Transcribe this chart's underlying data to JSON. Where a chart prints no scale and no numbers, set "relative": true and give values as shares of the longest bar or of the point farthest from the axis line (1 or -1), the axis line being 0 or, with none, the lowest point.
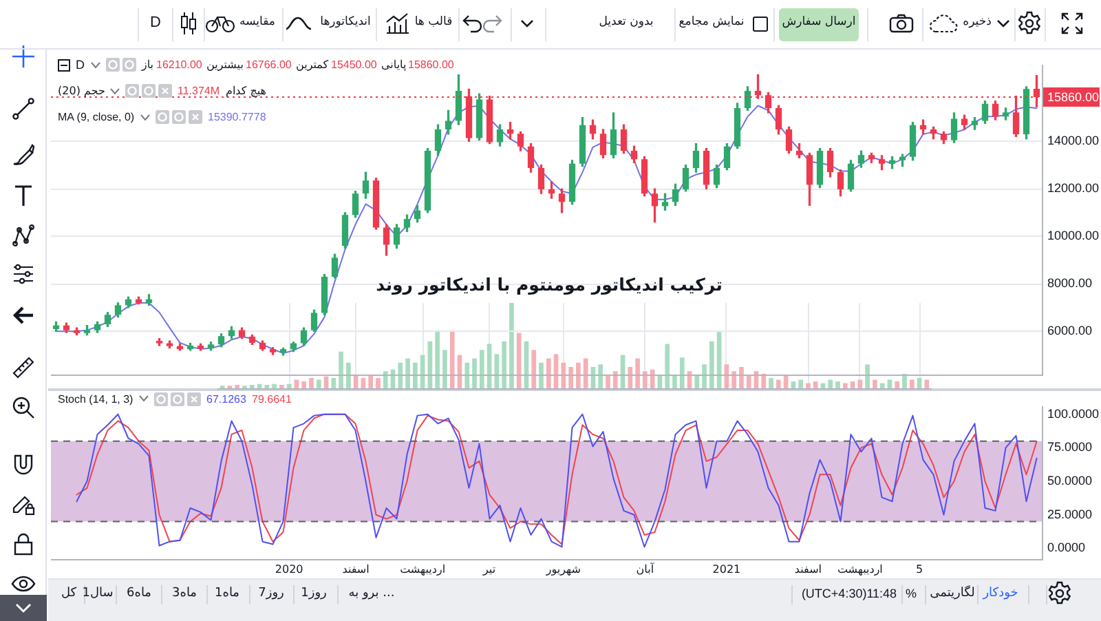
{
  "chart_data": [
    {
      "type": "other",
      "annotations": [
        "D",
        "مقایسه",
        "اندیکاتورها",
        "قالب ها",
        "بدون تعدیل",
        "نمایش مجامع",
        "ارسال سفارش",
        "ذخیره"
      ]
    },
    {
      "type": "candlestick",
      "title": "ترکیب اندیکاتور مومنتوم با اندیکاتور روند",
      "categories": [
        null,
        null,
        null,
        null,
        null,
        null,
        null,
        null,
        null,
        null,
        null,
        null,
        null,
        null,
        null,
        null,
        null,
        null,
        null,
        null,
        null,
        null,
        null,
        null,
        null,
        null,
        null,
        null,
        null,
        null,
        null,
        null,
        null,
        null,
        null,
        null,
        null,
        null,
        null,
        null,
        null,
        null,
        null,
        null,
        null,
        null,
        null,
        null,
        null,
        null,
        null,
        null,
        null,
        null,
        null,
        null,
        null,
        null,
        null,
        null,
        null,
        null,
        null,
        null,
        null,
        null,
        null,
        null,
        null,
        null,
        null,
        null,
        null,
        null,
        null,
        null,
        null,
        null,
        null,
        null,
        null,
        null,
        null,
        null,
        null,
        null,
        null,
        null,
        null,
        null,
        null,
        null,
        null,
        null,
        null,
        null
      ],
      "ohlc": [
        [
          6100,
          6400,
          6000,
          6250
        ],
        [
          6250,
          6350,
          5950,
          6050
        ],
        [
          6050,
          6150,
          5850,
          5930
        ],
        [
          5930,
          6250,
          5850,
          6050
        ],
        [
          6050,
          6400,
          5950,
          6300
        ],
        [
          6300,
          6800,
          6200,
          6700
        ],
        [
          6700,
          7200,
          6600,
          7100
        ],
        [
          7100,
          7450,
          7000,
          7350
        ],
        [
          7350,
          7450,
          7150,
          7200
        ],
        [
          7200,
          7550,
          7100,
          7350
        ],
        [
          5600,
          5700,
          5400,
          5500
        ],
        [
          5500,
          5600,
          5300,
          5380
        ],
        [
          5380,
          5480,
          5200,
          5250
        ],
        [
          5250,
          5500,
          5200,
          5400
        ],
        [
          5400,
          5480,
          5200,
          5280
        ],
        [
          5280,
          5550,
          5200,
          5450
        ],
        [
          5450,
          5900,
          5350,
          5800
        ],
        [
          5800,
          6200,
          5700,
          6050
        ],
        [
          6050,
          6150,
          5700,
          5780
        ],
        [
          5780,
          5850,
          5450,
          5520
        ],
        [
          5520,
          5600,
          5200,
          5250
        ],
        [
          5250,
          5320,
          5020,
          5120
        ],
        [
          5120,
          5300,
          5000,
          5250
        ],
        [
          5250,
          5550,
          5150,
          5500
        ],
        [
          5500,
          6150,
          5400,
          6050
        ],
        [
          6050,
          6900,
          6000,
          6780
        ],
        [
          6780,
          8400,
          6700,
          8300
        ],
        [
          8300,
          9250,
          8250,
          9100
        ],
        [
          9600,
          11000,
          9500,
          10900
        ],
        [
          10900,
          11900,
          10800,
          11800
        ],
        [
          11800,
          12700,
          11600,
          12350
        ],
        [
          12350,
          12450,
          10300,
          10370
        ],
        [
          10370,
          10500,
          9200,
          9650
        ],
        [
          9650,
          10500,
          9500,
          10370
        ],
        [
          10370,
          10900,
          10200,
          10730
        ],
        [
          10730,
          11300,
          10600,
          11090
        ],
        [
          11090,
          13700,
          11000,
          13600
        ],
        [
          13600,
          14700,
          13400,
          14500
        ],
        [
          14500,
          15300,
          14300,
          14860
        ],
        [
          14860,
          16800,
          14700,
          16120
        ],
        [
          15900,
          16200,
          14000,
          14140
        ],
        [
          14140,
          16000,
          14050,
          15760
        ],
        [
          15760,
          15900,
          13900,
          13960
        ],
        [
          13960,
          14700,
          13800,
          14500
        ],
        [
          14500,
          14800,
          14100,
          14320
        ],
        [
          14320,
          14400,
          13600,
          13780
        ],
        [
          13780,
          13900,
          12700,
          12880
        ],
        [
          12880,
          13000,
          11800,
          11980
        ],
        [
          11980,
          12300,
          11600,
          11800
        ],
        [
          11800,
          12000,
          11000,
          11450
        ],
        [
          11450,
          13200,
          11350,
          13060
        ],
        [
          13060,
          15000,
          12950,
          14680
        ],
        [
          14680,
          14900,
          14100,
          14320
        ],
        [
          14320,
          14500,
          13300,
          13420
        ],
        [
          13420,
          15200,
          13300,
          14500
        ],
        [
          14500,
          14700,
          13500,
          13600
        ],
        [
          13600,
          13800,
          13100,
          13250
        ],
        [
          13250,
          13350,
          11700,
          11800
        ],
        [
          11800,
          12000,
          10600,
          11270
        ],
        [
          11270,
          11800,
          11100,
          11450
        ],
        [
          11450,
          12200,
          11300,
          11980
        ],
        [
          11980,
          13000,
          11900,
          12880
        ],
        [
          12880,
          13900,
          12700,
          13600
        ],
        [
          13600,
          13700,
          12000,
          12170
        ],
        [
          12170,
          13000,
          12050,
          12880
        ],
        [
          12880,
          13900,
          12800,
          13780
        ],
        [
          13780,
          15600,
          13700,
          15400
        ],
        [
          15400,
          16300,
          15300,
          16120
        ],
        [
          16120,
          16800,
          15800,
          15940
        ],
        [
          15940,
          16050,
          15200,
          15400
        ],
        [
          15400,
          15500,
          14300,
          14500
        ],
        [
          14500,
          14600,
          13500,
          13600
        ],
        [
          13600,
          13900,
          13300,
          13420
        ],
        [
          13420,
          13500,
          11300,
          12170
        ],
        [
          12170,
          13700,
          12050,
          13600
        ],
        [
          13600,
          13700,
          12500,
          12700
        ],
        [
          12700,
          12800,
          11700,
          11980
        ],
        [
          11980,
          13200,
          11900,
          13060
        ],
        [
          13060,
          13600,
          12900,
          13420
        ],
        [
          13420,
          13500,
          13100,
          13250
        ],
        [
          13250,
          13400,
          12800,
          13060
        ],
        [
          13060,
          13350,
          12850,
          13200
        ],
        [
          13200,
          13450,
          12950,
          13350
        ],
        [
          13350,
          14800,
          13200,
          14680
        ],
        [
          14680,
          14900,
          14300,
          14500
        ],
        [
          14500,
          14600,
          14100,
          14320
        ],
        [
          14320,
          14400,
          13900,
          14050
        ],
        [
          14050,
          15200,
          13950,
          14950
        ],
        [
          14950,
          15100,
          14500,
          14680
        ],
        [
          14680,
          15000,
          14500,
          14860
        ],
        [
          14860,
          15700,
          14750,
          15580
        ],
        [
          15580,
          15700,
          14900,
          15040
        ],
        [
          15040,
          15400,
          14900,
          15220
        ],
        [
          15220,
          15900,
          14200,
          14300
        ],
        [
          14300,
          16300,
          14100,
          16200
        ],
        [
          16210,
          16766,
          15450,
          15860
        ]
      ],
      "colors": [
        "#2fa86b",
        "#ee3a4e",
        "#ee3a4e",
        "#2fa86b",
        "#2fa86b",
        "#2fa86b",
        "#2fa86b",
        "#2fa86b",
        "#ee3a4e",
        "#2fa86b",
        "#ee3a4e",
        "#ee3a4e",
        "#ee3a4e",
        "#2fa86b",
        "#ee3a4e",
        "#2fa86b",
        "#2fa86b",
        "#2fa86b",
        "#ee3a4e",
        "#ee3a4e",
        "#ee3a4e",
        "#ee3a4e",
        "#2fa86b",
        "#2fa86b",
        "#2fa86b",
        "#2fa86b",
        "#2fa86b",
        "#2fa86b",
        "#2fa86b",
        "#2fa86b",
        "#2fa86b",
        "#ee3a4e",
        "#ee3a4e",
        "#2fa86b",
        "#2fa86b",
        "#2fa86b",
        "#2fa86b",
        "#2fa86b",
        "#2fa86b",
        "#2fa86b",
        "#ee3a4e",
        "#2fa86b",
        "#ee3a4e",
        "#2fa86b",
        "#ee3a4e",
        "#ee3a4e",
        "#ee3a4e",
        "#ee3a4e",
        "#ee3a4e",
        "#ee3a4e",
        "#2fa86b",
        "#2fa86b",
        "#ee3a4e",
        "#ee3a4e",
        "#2fa86b",
        "#ee3a4e",
        "#ee3a4e",
        "#ee3a4e",
        "#ee3a4e",
        "#2fa86b",
        "#2fa86b",
        "#2fa86b",
        "#2fa86b",
        "#ee3a4e",
        "#2fa86b",
        "#2fa86b",
        "#2fa86b",
        "#2fa86b",
        "#ee3a4e",
        "#ee3a4e",
        "#ee3a4e",
        "#ee3a4e",
        "#ee3a4e",
        "#ee3a4e",
        "#2fa86b",
        "#ee3a4e",
        "#ee3a4e",
        "#2fa86b",
        "#2fa86b",
        "#ee3a4e",
        "#ee3a4e",
        "#2fa86b",
        "#2fa86b",
        "#2fa86b",
        "#ee3a4e",
        "#ee3a4e",
        "#ee3a4e",
        "#2fa86b",
        "#ee3a4e",
        "#2fa86b",
        "#2fa86b",
        "#ee3a4e",
        "#2fa86b",
        "#ee3a4e",
        "#2fa86b",
        "#ee3a4e"
      ],
      "series": [
        {
          "type": "line",
          "color": "#7272e8",
          "values": [
            6000,
            6000,
            6000,
            6050,
            6200,
            6400,
            6750,
            7050,
            7200,
            7200,
            6800,
            6150,
            5520,
            5350,
            5260,
            5300,
            5400,
            5650,
            5780,
            5700,
            5450,
            5250,
            5080,
            5200,
            5400,
            5900,
            6600,
            8100,
            9450,
            10500,
            11360,
            11090,
            10500,
            10000,
            10450,
            11350,
            12400,
            13400,
            14550,
            15200,
            15450,
            15490,
            14950,
            14500,
            14100,
            13850,
            13450,
            12750,
            12300,
            11900,
            11800,
            12700,
            13750,
            13960,
            13900,
            13800,
            13200,
            12100,
            11550,
            11550,
            11650,
            12400,
            12600,
            12700,
            12850,
            13400,
            14250,
            15040,
            15500,
            15300,
            14700,
            14150,
            13650,
            13150,
            13080,
            13000,
            12750,
            12750,
            13050,
            13330,
            13200,
            13060,
            13250,
            13600,
            14300,
            14400,
            14250,
            14350,
            14500,
            14800,
            15040,
            15050,
            15100,
            15350,
            15450,
            15390.7778
          ]
        }
      ],
      "ylim": [
        4150,
        17200
      ],
      "yticks": [
        {
          "value": 6000,
          "label": "6000.00"
        },
        {
          "value": 8000,
          "label": "8000.00"
        },
        {
          "value": 10000,
          "label": "10000.00"
        },
        {
          "value": 12000,
          "label": "12000.00"
        },
        {
          "value": 14000,
          "label": "14000.00"
        }
      ],
      "grid": "y",
      "tick_labels": "y",
      "ref_lines": [
        {
          "axis": "y",
          "value": 15860,
          "label": "15860.00",
          "color": "#ee3a4e",
          "line_style": "dotted"
        }
      ],
      "annotations": [
        "D",
        "باز",
        "16210.00",
        "بیشترین",
        "16766.00",
        "کمترین",
        "15450.00",
        "پایانی",
        "15860.00",
        "MA (9, close, 0)",
        "15390.7778"
      ]
    },
    {
      "type": "bar",
      "relative": true,
      "tick_labels": "x",
      "grid": "x",
      "categories": [
        null,
        null,
        null,
        null,
        null,
        null,
        null,
        null,
        null,
        "2020",
        null,
        null,
        null,
        null,
        null,
        null,
        null,
        null,
        "اسفند",
        null,
        null,
        null,
        null,
        null,
        null,
        null,
        null,
        "اردیبهشت",
        null,
        null,
        null,
        null,
        null,
        null,
        null,
        null,
        "تیر",
        null,
        null,
        null,
        null,
        null,
        null,
        null,
        null,
        null,
        "شهریور",
        null,
        null,
        null,
        null,
        null,
        null,
        null,
        null,
        null,
        null,
        "آبان",
        null,
        null,
        null,
        null,
        null,
        null,
        null,
        null,
        null,
        null,
        "2021",
        null,
        null,
        null,
        null,
        null,
        null,
        null,
        null,
        null,
        null,
        "اسفند",
        null,
        null,
        null,
        null,
        null,
        null,
        "اردیبهشت",
        null,
        null,
        null,
        null,
        null,
        null,
        null,
        "5",
        null
      ],
      "values": [
        0.03,
        0.03,
        0.04,
        0.03,
        0.04,
        0.05,
        0.04,
        0.05,
        0.04,
        0.05,
        0.1,
        0.08,
        0.12,
        0.1,
        0.14,
        0.12,
        0.43,
        0.3,
        0.15,
        0.12,
        0.15,
        0.12,
        0.2,
        0.22,
        0.3,
        0.35,
        0.3,
        0.39,
        0.55,
        0.68,
        0.45,
        0.68,
        0.39,
        0.3,
        0.35,
        0.45,
        0.52,
        0.4,
        0.55,
        1,
        0.65,
        0.55,
        0.45,
        0.3,
        0.35,
        0.4,
        0.3,
        0.25,
        0.3,
        0.35,
        0.25,
        0.28,
        0.15,
        0.2,
        0.39,
        0.25,
        0.35,
        0.2,
        0.22,
        0.15,
        0.52,
        0.15,
        0.36,
        0.2,
        0.15,
        0.28,
        0.55,
        0.66,
        0.28,
        0.2,
        0.25,
        0.15,
        0.2,
        0.17,
        0.12,
        0.1,
        0.15,
        0.08,
        0.1,
        0.06,
        0.08,
        0.06,
        0.1,
        0.08,
        0.06,
        0.08,
        0.1,
        0.28,
        0.1,
        0.06,
        0.1,
        0.08,
        0.17,
        0.1,
        0.12,
        0.1
      ],
      "colors": [
        "#a8dcc0",
        "#f5b0b6",
        "#f5b0b6",
        "#a8dcc0",
        "#a8dcc0",
        "#a8dcc0",
        "#a8dcc0",
        "#a8dcc0",
        "#f5b0b6",
        "#a8dcc0",
        "#f5b0b6",
        "#f5b0b6",
        "#f5b0b6",
        "#a8dcc0",
        "#f5b0b6",
        "#a8dcc0",
        "#a8dcc0",
        "#a8dcc0",
        "#f5b0b6",
        "#f5b0b6",
        "#f5b0b6",
        "#f5b0b6",
        "#a8dcc0",
        "#a8dcc0",
        "#a8dcc0",
        "#a8dcc0",
        "#a8dcc0",
        "#a8dcc0",
        "#a8dcc0",
        "#a8dcc0",
        "#a8dcc0",
        "#f5b0b6",
        "#f5b0b6",
        "#a8dcc0",
        "#a8dcc0",
        "#a8dcc0",
        "#a8dcc0",
        "#a8dcc0",
        "#a8dcc0",
        "#a8dcc0",
        "#f5b0b6",
        "#a8dcc0",
        "#f5b0b6",
        "#a8dcc0",
        "#f5b0b6",
        "#f5b0b6",
        "#f5b0b6",
        "#f5b0b6",
        "#f5b0b6",
        "#f5b0b6",
        "#a8dcc0",
        "#a8dcc0",
        "#f5b0b6",
        "#f5b0b6",
        "#a8dcc0",
        "#f5b0b6",
        "#f5b0b6",
        "#f5b0b6",
        "#f5b0b6",
        "#a8dcc0",
        "#a8dcc0",
        "#a8dcc0",
        "#a8dcc0",
        "#f5b0b6",
        "#a8dcc0",
        "#a8dcc0",
        "#a8dcc0",
        "#a8dcc0",
        "#f5b0b6",
        "#f5b0b6",
        "#f5b0b6",
        "#f5b0b6",
        "#f5b0b6",
        "#f5b0b6",
        "#a8dcc0",
        "#f5b0b6",
        "#f5b0b6",
        "#a8dcc0",
        "#a8dcc0",
        "#f5b0b6",
        "#f5b0b6",
        "#a8dcc0",
        "#a8dcc0",
        "#a8dcc0",
        "#f5b0b6",
        "#f5b0b6",
        "#f5b0b6",
        "#a8dcc0",
        "#f5b0b6",
        "#a8dcc0",
        "#a8dcc0",
        "#f5b0b6",
        "#a8dcc0",
        "#f5b0b6",
        "#a8dcc0",
        "#f5b0b6"
      ],
      "annotations": [
        "حجم (20)",
        "11.374M",
        "هیچ کدام"
      ]
    },
    {
      "type": "line",
      "tick_labels": "y",
      "categories": [
        null,
        null,
        null,
        null,
        null,
        null,
        null,
        null,
        null,
        null,
        null,
        null,
        null,
        null,
        null,
        null,
        null,
        null,
        null,
        null,
        null,
        null,
        null,
        null,
        null,
        null,
        null,
        null,
        null,
        null,
        null,
        null,
        null,
        null,
        null,
        null,
        null,
        null,
        null,
        null,
        null,
        null,
        null,
        null,
        null,
        null,
        null,
        null,
        null,
        null,
        null,
        null,
        null,
        null,
        null,
        null,
        null,
        null,
        null,
        null,
        null,
        null,
        null,
        null,
        null,
        null,
        null,
        null,
        null,
        null,
        null,
        null,
        null,
        null,
        null,
        null,
        null,
        null,
        null,
        null,
        null,
        null,
        null,
        null,
        null,
        null,
        null,
        null,
        null,
        null,
        null,
        null,
        null,
        null,
        null,
        null
      ],
      "series": [
        {
          "color": "#4f4ff2",
          "values": [
            null,
            null,
            35,
            50,
            85,
            92,
            100,
            82,
            78,
            69,
            2,
            5,
            6,
            30,
            27,
            21,
            65,
            95,
            80,
            47,
            5,
            3,
            20,
            90,
            93,
            99,
            100,
            100,
            100,
            88,
            50,
            8,
            30,
            22,
            70,
            99,
            100,
            93,
            97,
            81,
            45,
            78,
            22,
            32,
            5,
            30,
            10,
            22,
            5,
            1,
            90,
            100,
            76,
            87,
            52,
            28,
            25,
            1,
            20,
            44,
            85,
            92,
            95,
            45,
            80,
            80,
            95,
            85,
            72,
            45,
            32,
            5,
            5,
            41,
            66,
            50,
            20,
            85,
            72,
            82,
            38,
            35,
            78,
            99,
            66,
            55,
            25,
            65,
            80,
            93,
            30,
            28,
            75,
            84,
            35,
            67.1263
          ]
        },
        {
          "color": "#f0444f",
          "values": [
            null,
            null,
            40,
            45,
            70,
            88,
            95,
            90,
            80,
            73,
            25,
            5,
            6,
            20,
            26,
            24,
            45,
            85,
            88,
            60,
            20,
            5,
            12,
            60,
            88,
            97,
            100,
            100,
            100,
            93,
            65,
            25,
            22,
            25,
            50,
            88,
            99,
            96,
            95,
            87,
            60,
            65,
            40,
            30,
            15,
            20,
            18,
            18,
            10,
            3,
            55,
            92,
            85,
            82,
            65,
            38,
            28,
            10,
            12,
            35,
            70,
            88,
            92,
            65,
            68,
            78,
            88,
            88,
            78,
            58,
            38,
            15,
            6,
            25,
            55,
            55,
            32,
            60,
            75,
            78,
            55,
            40,
            60,
            88,
            78,
            62,
            38,
            50,
            72,
            85,
            50,
            30,
            55,
            78,
            55,
            79.6641
          ]
        }
      ],
      "ylim": [
        -8,
        106
      ],
      "yticks": [
        {
          "value": 0,
          "label": "0.0000"
        },
        {
          "value": 25,
          "label": "25.0000"
        },
        {
          "value": 50,
          "label": "50.0000"
        },
        {
          "value": 75,
          "label": "75.0000"
        },
        {
          "value": 100,
          "label": "100.0000"
        }
      ],
      "bands": [
        {
          "axis": "y",
          "from": 20,
          "to": 80,
          "color": "#dcc1e1"
        }
      ],
      "ref_lines": [
        {
          "axis": "y",
          "value": 80,
          "color": "#5d606b",
          "line_style": "dashed"
        },
        {
          "axis": "y",
          "value": 20,
          "color": "#5d606b",
          "line_style": "dashed"
        }
      ],
      "annotations": [
        "Stoch (14, 1, 3)",
        "67.1263",
        "79.6641"
      ]
    },
    {
      "type": "other",
      "annotations": [
        "کل",
        "1سال",
        "6ماه",
        "3ماه",
        "1ماه",
        "7روز",
        "1روز",
        "برو به ...",
        "(UTC+4:30)11:48",
        "%",
        "لگاریتمی",
        "خودکار"
      ]
    }
  ]
}
